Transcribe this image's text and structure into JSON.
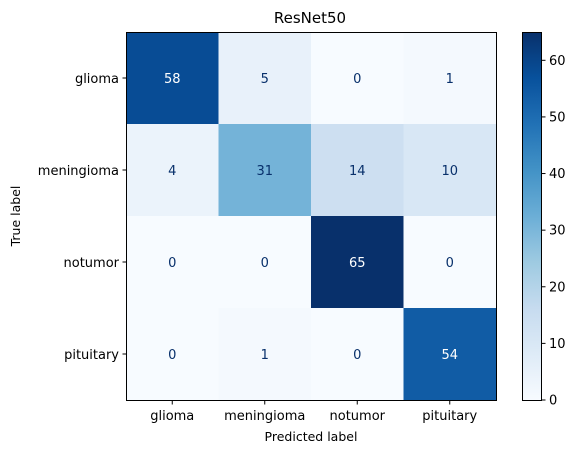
{
  "chart_data": {
    "type": "heatmap",
    "title": "ResNet50",
    "xlabel": "Predicted label",
    "ylabel": "True label",
    "x_categories": [
      "glioma",
      "meningioma",
      "notumor",
      "pituitary"
    ],
    "y_categories": [
      "glioma",
      "meningioma",
      "notumor",
      "pituitary"
    ],
    "values": [
      [
        58,
        5,
        0,
        1
      ],
      [
        4,
        31,
        14,
        10
      ],
      [
        0,
        0,
        65,
        0
      ],
      [
        0,
        1,
        0,
        54
      ]
    ],
    "colormap": "Blues",
    "color_range": [
      0,
      65
    ],
    "colorbar": {
      "ticks": [
        0,
        10,
        20,
        30,
        40,
        50,
        60
      ],
      "labels": [
        "0",
        "10",
        "20",
        "30",
        "40",
        "50",
        "60"
      ]
    },
    "text_color_light": "#ffffff",
    "text_color_dark": "#08306b"
  }
}
